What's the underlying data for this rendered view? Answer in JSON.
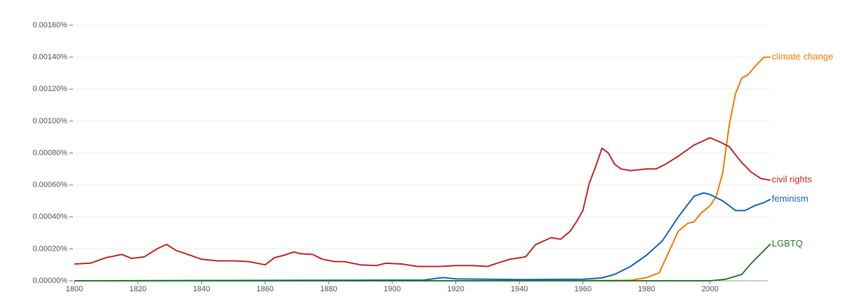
{
  "chart_data": {
    "type": "line",
    "xlim": [
      1800,
      2019
    ],
    "xticks": [
      1800,
      1820,
      1840,
      1860,
      1880,
      1900,
      1920,
      1940,
      1960,
      1980,
      2000
    ],
    "ylim": [
      0,
      0.0016
    ],
    "yticks": [
      {
        "value": 0,
        "label": "0.00000%"
      },
      {
        "value": 0.0002,
        "label": "0.00020%"
      },
      {
        "value": 0.0004,
        "label": "0.00040%"
      },
      {
        "value": 0.0006,
        "label": "0.00060%"
      },
      {
        "value": 0.0008,
        "label": "0.00080%"
      },
      {
        "value": 0.001,
        "label": "0.00100%"
      },
      {
        "value": 0.0012,
        "label": "0.00120%"
      },
      {
        "value": 0.0014,
        "label": "0.00140%"
      },
      {
        "value": 0.0016,
        "label": "0.00160%"
      }
    ],
    "grid": true,
    "series": [
      {
        "name": "climate change",
        "color": "#f57c00",
        "x": [
          1800,
          1900,
          1950,
          1975,
          1980,
          1984,
          1987,
          1990,
          1993,
          1995,
          1997,
          2000,
          2002,
          2004,
          2006,
          2008,
          2010,
          2012,
          2014,
          2017,
          2019
        ],
        "values": [
          0,
          0,
          0,
          3e-06,
          2e-05,
          5e-05,
          0.00018,
          0.00031,
          0.00036,
          0.00037,
          0.00042,
          0.00047,
          0.00053,
          0.00068,
          0.00097,
          0.00117,
          0.00127,
          0.00129,
          0.00134,
          0.0014,
          0.0014
        ]
      },
      {
        "name": "civil rights",
        "color": "#c62828",
        "x": [
          1800,
          1805,
          1810,
          1815,
          1818,
          1822,
          1826,
          1829,
          1832,
          1835,
          1840,
          1845,
          1850,
          1855,
          1860,
          1863,
          1866,
          1869,
          1871,
          1875,
          1878,
          1882,
          1885,
          1890,
          1895,
          1898,
          1903,
          1908,
          1915,
          1920,
          1925,
          1930,
          1933,
          1937,
          1942,
          1945,
          1950,
          1953,
          1956,
          1958,
          1960,
          1962,
          1964,
          1966,
          1968,
          1970,
          1972,
          1975,
          1980,
          1983,
          1986,
          1990,
          1995,
          2000,
          2003,
          2006,
          2010,
          2013,
          2016,
          2019
        ],
        "values": [
          0.000105,
          0.00011,
          0.000145,
          0.000165,
          0.00014,
          0.00015,
          0.0002,
          0.000228,
          0.00019,
          0.00017,
          0.000135,
          0.000125,
          0.000125,
          0.00012,
          0.0001,
          0.000145,
          0.00016,
          0.00018,
          0.00017,
          0.000165,
          0.000135,
          0.00012,
          0.00012,
          0.0001,
          9.5e-05,
          0.00011,
          0.000105,
          9e-05,
          9e-05,
          9.5e-05,
          9.5e-05,
          9e-05,
          0.00011,
          0.000135,
          0.00015,
          0.000225,
          0.00027,
          0.00026,
          0.00031,
          0.00037,
          0.00044,
          0.00061,
          0.000715,
          0.00083,
          0.0008,
          0.00073,
          0.0007,
          0.00069,
          0.0007,
          0.0007,
          0.00073,
          0.00078,
          0.00085,
          0.000895,
          0.00087,
          0.00084,
          0.00074,
          0.00068,
          0.00064,
          0.00063
        ]
      },
      {
        "name": "feminism",
        "color": "#1565c0",
        "x": [
          1800,
          1910,
          1916,
          1920,
          1940,
          1960,
          1966,
          1970,
          1975,
          1980,
          1985,
          1990,
          1995,
          1998,
          2000,
          2004,
          2008,
          2011,
          2014,
          2017,
          2019
        ],
        "values": [
          0,
          5e-06,
          2e-05,
          1.2e-05,
          8e-06,
          1e-05,
          1.8e-05,
          4e-05,
          9e-05,
          0.00016,
          0.00025,
          0.0004,
          0.00053,
          0.00055,
          0.00054,
          0.0005,
          0.00044,
          0.00044,
          0.00047,
          0.00049,
          0.00051
        ]
      },
      {
        "name": "LGBTQ",
        "color": "#2e7d32",
        "x": [
          1800,
          2000,
          2005,
          2010,
          2013,
          2016,
          2019
        ],
        "values": [
          0,
          0,
          1e-05,
          4e-05,
          0.00011,
          0.00017,
          0.00023
        ]
      }
    ]
  }
}
